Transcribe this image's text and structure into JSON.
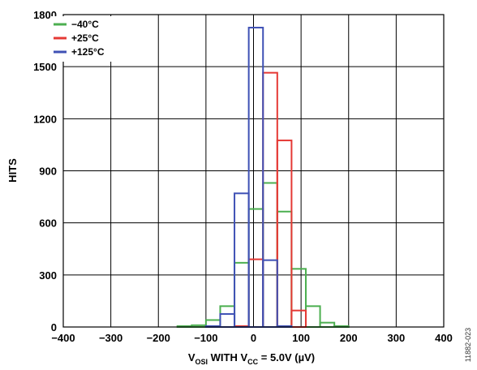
{
  "chart_data": {
    "type": "bar",
    "subtype": "histogram-step",
    "bin_edges": [
      -160,
      -130,
      -100,
      -70,
      -40,
      -10,
      20,
      50,
      80,
      110,
      140,
      170,
      200,
      230
    ],
    "series": [
      {
        "name": "−40°C",
        "color": "#4caf50",
        "counts": [
          5,
          10,
          40,
          120,
          370,
          680,
          830,
          665,
          335,
          120,
          25,
          5,
          0
        ]
      },
      {
        "name": "+25°C",
        "color": "#e53935",
        "counts": [
          0,
          0,
          0,
          0,
          5,
          390,
          1465,
          1075,
          95,
          0,
          0,
          0,
          0
        ]
      },
      {
        "name": "+125°C",
        "color": "#3f51b5",
        "counts": [
          0,
          0,
          5,
          75,
          770,
          1725,
          385,
          5,
          0,
          0,
          0,
          0,
          0
        ]
      }
    ],
    "xlim": [
      -400,
      400
    ],
    "ylim": [
      0,
      1800
    ],
    "xticks": [
      "−400",
      "−300",
      "−200",
      "−100",
      "0",
      "100",
      "200",
      "300",
      "400"
    ],
    "yticks": [
      "0",
      "300",
      "600",
      "900",
      "1200",
      "1500",
      "1800"
    ],
    "ylabel": "HITS",
    "xlabel_parts": {
      "v1": "V",
      "sub1": "OSI",
      "mid": "  WITH V",
      "sub2": "CC",
      "tail": " = 5.0V (µV)"
    },
    "grid": true,
    "legend_position": "top-left",
    "figure_id": "11882-023"
  }
}
